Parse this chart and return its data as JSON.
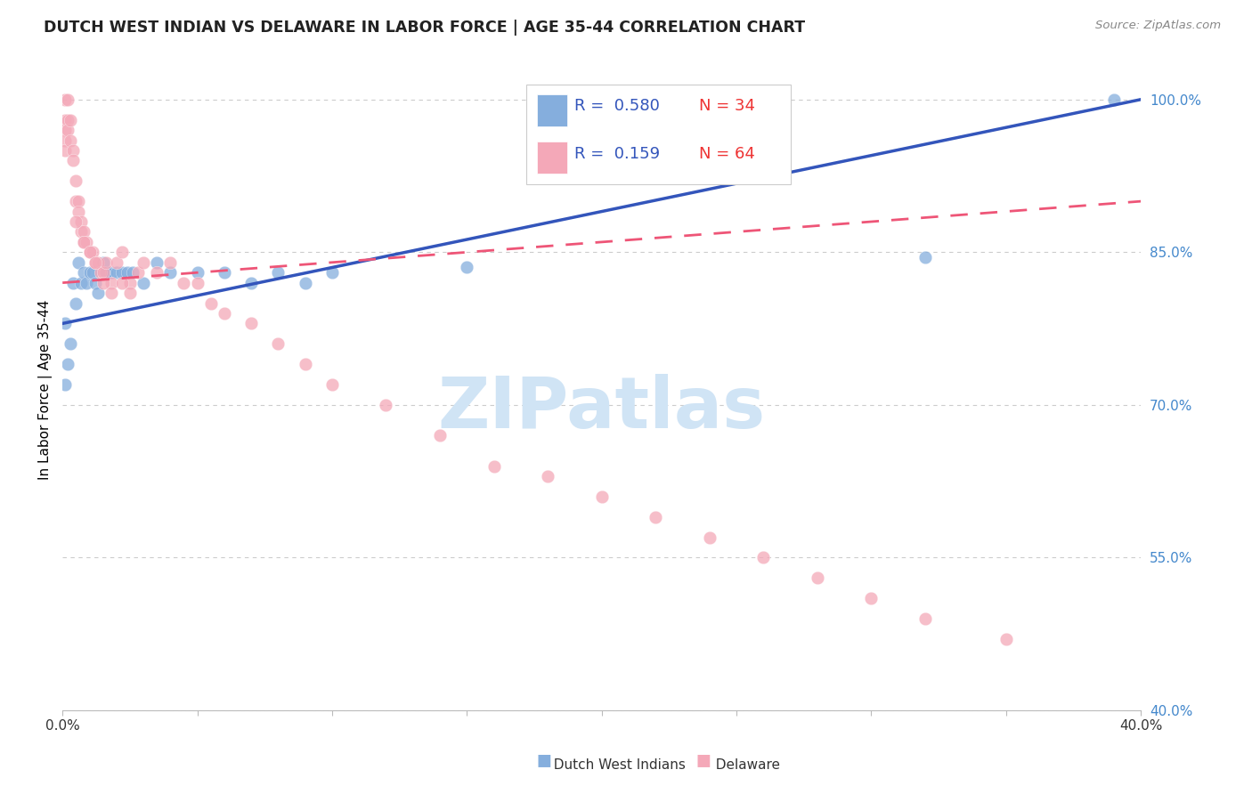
{
  "title": "DUTCH WEST INDIAN VS DELAWARE IN LABOR FORCE | AGE 35-44 CORRELATION CHART",
  "source": "Source: ZipAtlas.com",
  "ylabel": "In Labor Force | Age 35-44",
  "xmin": 0.0,
  "xmax": 0.4,
  "ymin": 0.4,
  "ymax": 1.03,
  "yticks": [
    0.4,
    0.55,
    0.7,
    0.85,
    1.0
  ],
  "ytick_labels": [
    "40.0%",
    "55.0%",
    "70.0%",
    "85.0%",
    "100.0%"
  ],
  "xticks": [
    0.0,
    0.05,
    0.1,
    0.15,
    0.2,
    0.25,
    0.3,
    0.35,
    0.4
  ],
  "xtick_labels": [
    "0.0%",
    "",
    "",
    "",
    "",
    "",
    "",
    "",
    "40.0%"
  ],
  "legend_R_blue": "0.580",
  "legend_N_blue": "34",
  "legend_R_pink": "0.159",
  "legend_N_pink": "64",
  "blue_color": "#85AEDD",
  "pink_color": "#F4A8B8",
  "trend_blue": "#3355BB",
  "trend_pink": "#EE5577",
  "watermark_text": "ZIPatlas",
  "blue_scatter_x": [
    0.001,
    0.001,
    0.002,
    0.003,
    0.004,
    0.005,
    0.006,
    0.007,
    0.008,
    0.009,
    0.01,
    0.011,
    0.012,
    0.013,
    0.015,
    0.016,
    0.016,
    0.018,
    0.02,
    0.022,
    0.024,
    0.026,
    0.03,
    0.035,
    0.04,
    0.05,
    0.06,
    0.07,
    0.08,
    0.09,
    0.1,
    0.15,
    0.32,
    0.39
  ],
  "blue_scatter_y": [
    0.78,
    0.72,
    0.74,
    0.76,
    0.82,
    0.8,
    0.84,
    0.82,
    0.83,
    0.82,
    0.83,
    0.83,
    0.82,
    0.81,
    0.84,
    0.83,
    0.83,
    0.83,
    0.83,
    0.83,
    0.83,
    0.83,
    0.82,
    0.84,
    0.83,
    0.83,
    0.83,
    0.82,
    0.83,
    0.82,
    0.83,
    0.835,
    0.845,
    1.0
  ],
  "pink_scatter_x": [
    0.001,
    0.001,
    0.001,
    0.001,
    0.001,
    0.002,
    0.002,
    0.002,
    0.003,
    0.003,
    0.004,
    0.004,
    0.005,
    0.005,
    0.006,
    0.006,
    0.007,
    0.007,
    0.008,
    0.008,
    0.009,
    0.01,
    0.011,
    0.012,
    0.013,
    0.014,
    0.015,
    0.016,
    0.018,
    0.02,
    0.022,
    0.025,
    0.028,
    0.03,
    0.035,
    0.04,
    0.045,
    0.05,
    0.055,
    0.06,
    0.07,
    0.08,
    0.09,
    0.1,
    0.12,
    0.14,
    0.16,
    0.18,
    0.2,
    0.22,
    0.24,
    0.26,
    0.28,
    0.3,
    0.32,
    0.35,
    0.005,
    0.008,
    0.01,
    0.012,
    0.015,
    0.018,
    0.022,
    0.025
  ],
  "pink_scatter_y": [
    1.0,
    0.98,
    0.97,
    0.96,
    0.95,
    1.0,
    0.98,
    0.97,
    0.98,
    0.96,
    0.95,
    0.94,
    0.92,
    0.9,
    0.9,
    0.89,
    0.88,
    0.87,
    0.87,
    0.86,
    0.86,
    0.85,
    0.85,
    0.84,
    0.84,
    0.83,
    0.83,
    0.84,
    0.82,
    0.84,
    0.85,
    0.82,
    0.83,
    0.84,
    0.83,
    0.84,
    0.82,
    0.82,
    0.8,
    0.79,
    0.78,
    0.76,
    0.74,
    0.72,
    0.7,
    0.67,
    0.64,
    0.63,
    0.61,
    0.59,
    0.57,
    0.55,
    0.53,
    0.51,
    0.49,
    0.47,
    0.88,
    0.86,
    0.85,
    0.84,
    0.82,
    0.81,
    0.82,
    0.81
  ]
}
